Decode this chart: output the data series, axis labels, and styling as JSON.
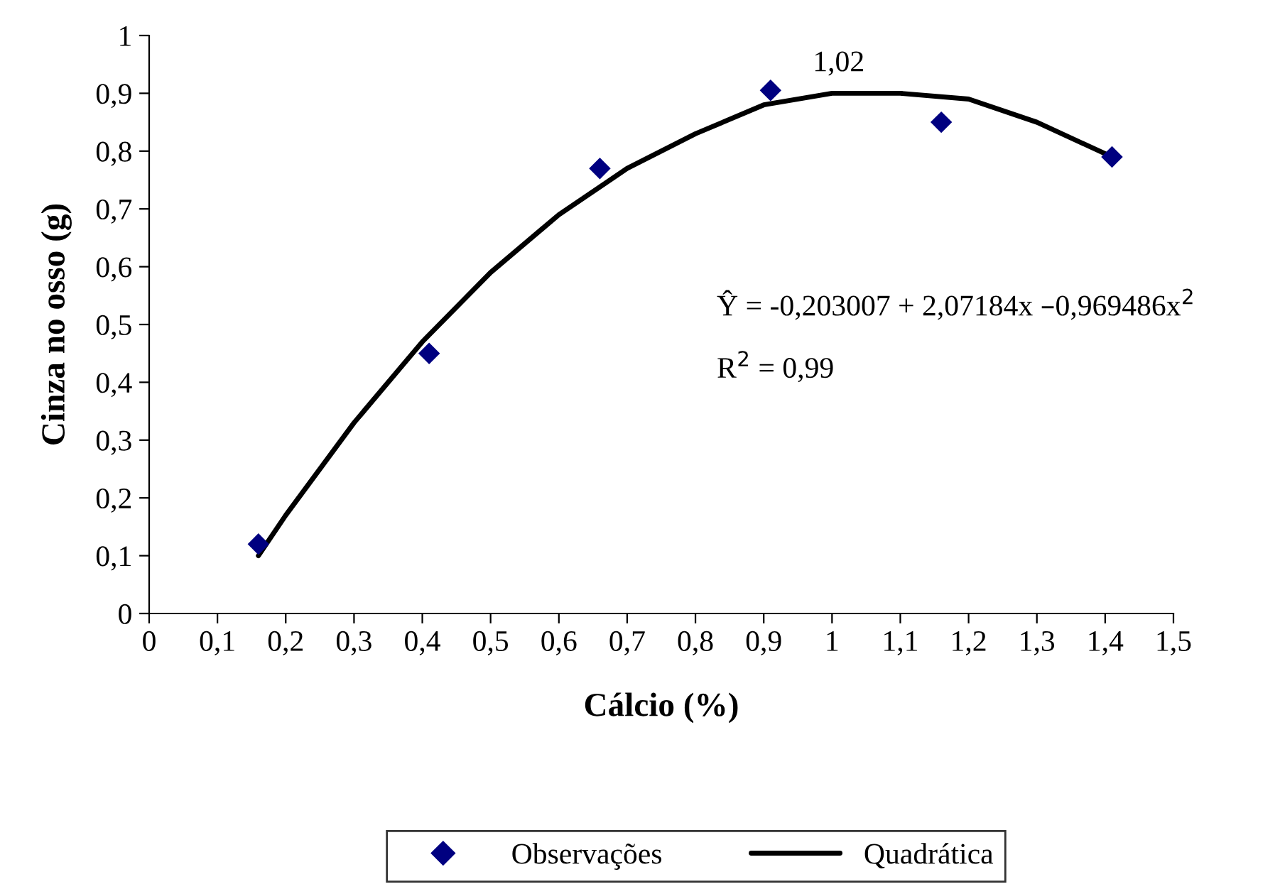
{
  "chart_data": {
    "type": "scatter",
    "xlabel": "Cálcio (%)",
    "ylabel": "Cinza no osso (g)",
    "series": [
      {
        "name": "Observações",
        "color": "#000080",
        "marker": "diamond",
        "x": [
          0.16,
          0.41,
          0.66,
          0.91,
          1.16,
          1.41
        ],
        "values": [
          0.12,
          0.45,
          0.77,
          0.905,
          0.85,
          0.79
        ]
      },
      {
        "name": "Quadrática",
        "type": "line",
        "color": "#000000",
        "marker": "none",
        "line_style": "solid",
        "x": [
          0.16,
          0.2,
          0.3,
          0.4,
          0.5,
          0.6,
          0.7,
          0.8,
          0.9,
          1.0,
          1.1,
          1.2,
          1.3,
          1.41
        ],
        "values": [
          0.1,
          0.17,
          0.33,
          0.47,
          0.59,
          0.69,
          0.77,
          0.83,
          0.88,
          0.9,
          0.9,
          0.89,
          0.85,
          0.79
        ]
      }
    ],
    "xlim": [
      0,
      1.5
    ],
    "ylim": [
      0,
      1
    ],
    "xticks": [
      0,
      {
        "value": 0.1,
        "label": "0,1"
      },
      {
        "value": 0.2,
        "label": "0,2"
      },
      {
        "value": 0.3,
        "label": "0,3"
      },
      {
        "value": 0.4,
        "label": "0,4"
      },
      {
        "value": 0.5,
        "label": "0,5"
      },
      {
        "value": 0.6,
        "label": "0,6"
      },
      {
        "value": 0.7,
        "label": "0,7"
      },
      {
        "value": 0.8,
        "label": "0,8"
      },
      {
        "value": 0.9,
        "label": "0,9"
      },
      1,
      {
        "value": 1.1,
        "label": "1,1"
      },
      {
        "value": 1.2,
        "label": "1,2"
      },
      {
        "value": 1.3,
        "label": "1,3"
      },
      {
        "value": 1.4,
        "label": "1,4"
      },
      {
        "value": 1.5,
        "label": "1,5"
      }
    ],
    "yticks": [
      0,
      {
        "value": 0.1,
        "label": "0,1"
      },
      {
        "value": 0.2,
        "label": "0,2"
      },
      {
        "value": 0.3,
        "label": "0,3"
      },
      {
        "value": 0.4,
        "label": "0,4"
      },
      {
        "value": 0.5,
        "label": "0,5"
      },
      {
        "value": 0.6,
        "label": "0,6"
      },
      {
        "value": 0.7,
        "label": "0,7"
      },
      {
        "value": 0.8,
        "label": "0,8"
      },
      {
        "value": 0.9,
        "label": "0,9"
      },
      1
    ],
    "annotations": [
      "1,02",
      "Ŷ = -0,203007 + 2,07184x –0,969486x$^{2}$",
      "R$^{2}$ = 0,99"
    ],
    "grid": false,
    "legend": "bottom"
  }
}
